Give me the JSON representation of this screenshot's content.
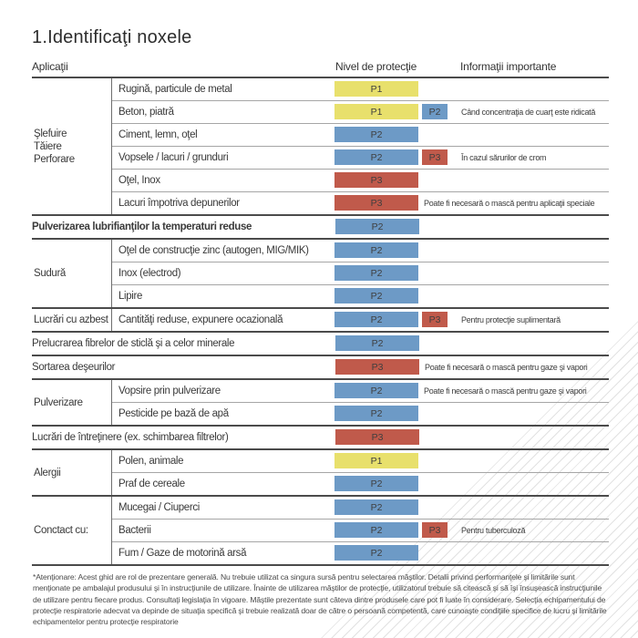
{
  "title": "1.Identificaţi noxele",
  "columns": {
    "applications": "Aplicaţii",
    "protection_level": "Nivel de protecţie",
    "important_info": "Informaţii importante"
  },
  "badge_colors": {
    "p1": "#e8e06c",
    "p2": "#6d9ac6",
    "p3": "#c05a4b"
  },
  "rows": [
    {
      "type": "group",
      "category": "Şlefuire\nTăiere\nPerforare",
      "items": [
        {
          "label": "Rugină, particule de metal",
          "badge": "P1"
        },
        {
          "label": "Beton, piatră",
          "badge": "P1",
          "extra_badge": "P2",
          "note": "Când concentraţia de cuarţ este ridicată"
        },
        {
          "label": "Ciment, lemn, oţel",
          "badge": "P2"
        },
        {
          "label": "Vopsele / lacuri / grunduri",
          "badge": "P2",
          "extra_badge": "P3",
          "note": "În cazul sărurilor de crom"
        },
        {
          "label": "Oţel, Inox",
          "badge": "P3"
        },
        {
          "label": "Lacuri împotriva depunerilor",
          "badge": "P3",
          "note": "Poate fi necesară o mască pentru aplicaţii speciale"
        }
      ]
    },
    {
      "type": "full",
      "label": "Pulverizarea lubrifianţilor la temperaturi reduse",
      "badge": "P2",
      "bold": true
    },
    {
      "type": "group",
      "category": "Sudură",
      "items": [
        {
          "label": "Oţel de construcţie zinc (autogen, MIG/MIK)",
          "badge": "P2"
        },
        {
          "label": "Inox (electrod)",
          "badge": "P2"
        },
        {
          "label": "Lipire",
          "badge": "P2"
        }
      ]
    },
    {
      "type": "group",
      "category": "Lucrări cu azbest",
      "items": [
        {
          "label": "Cantităţi reduse, expunere ocazională",
          "badge": "P2",
          "extra_badge": "P3",
          "note": "Pentru protecţie suplimentară"
        }
      ]
    },
    {
      "type": "full",
      "label": "Prelucrarea fibrelor de sticlă şi a celor minerale",
      "badge": "P2"
    },
    {
      "type": "full",
      "label": "Sortarea deşeurilor",
      "badge": "P3",
      "note": "Poate fi necesară o mască pentru gaze şi vapori"
    },
    {
      "type": "group",
      "category": "Pulverizare",
      "items": [
        {
          "label": "Vopsire prin pulverizare",
          "badge": "P2",
          "note": "Poate fi necesară o mască pentru gaze şi vapori"
        },
        {
          "label": "Pesticide pe bază de apă",
          "badge": "P2"
        }
      ]
    },
    {
      "type": "full",
      "label": "Lucrări de întreţinere (ex. schimbarea filtrelor)",
      "badge": "P3"
    },
    {
      "type": "group",
      "category": "Alergii",
      "items": [
        {
          "label": "Polen, animale",
          "badge": "P1"
        },
        {
          "label": "Praf de cereale",
          "badge": "P2"
        }
      ]
    },
    {
      "type": "group",
      "category": "Conctact cu:",
      "items": [
        {
          "label": "Mucegai / Ciuperci",
          "badge": "P2"
        },
        {
          "label": "Bacterii",
          "badge": "P2",
          "extra_badge": "P3",
          "note": "Pentru tuberculoză"
        },
        {
          "label": "Fum / Gaze de motorină arsă",
          "badge": "P2"
        }
      ]
    }
  ],
  "footnote": "*Atenţionare: Acest ghid are rol de prezentare generală. Nu trebuie utilizat ca singura sursă pentru selectarea măştilor. Detalii privind performanţele şi limitările sunt menţionate pe ambalajul produsului şi în instrucţiunile de utilizare. Înainte de utilizarea măştilor de protecţie, utilizatorul trebuie să citească şi să îşi însuşească instrucţiunile de utilizare pentru fiecare produs. Consultaţi legislaţia în vigoare. Măştile prezentate sunt câteva dintre produsele care pot fi luate în considerare. Selecţia echipamentului de protecţie respiratorie adecvat va depinde de situaţia specifică şi trebuie realizată doar de către o persoană competentă, care cunoaşte condiţiile specifice de lucru şi limitările echipamentelor pentru protecţie respiratorie"
}
